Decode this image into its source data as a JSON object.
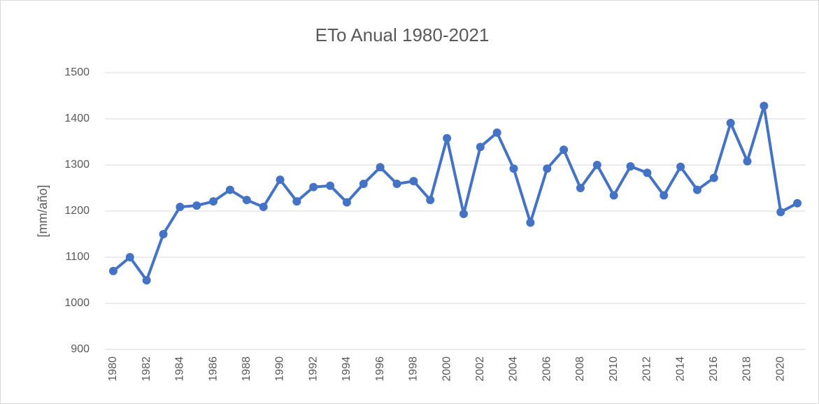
{
  "chart_data": {
    "type": "line",
    "title": "ETo Anual 1980-2021",
    "y_label": "[mm/año]",
    "categories": [
      "1980",
      null,
      "1982",
      null,
      "1984",
      null,
      "1986",
      null,
      "1988",
      null,
      "1990",
      null,
      "1992",
      null,
      "1994",
      null,
      "1996",
      null,
      "1998",
      null,
      "2000",
      null,
      "2002",
      null,
      "2004",
      null,
      "2006",
      null,
      "2008",
      null,
      "2010",
      null,
      "2012",
      null,
      "2014",
      null,
      "2016",
      null,
      "2018",
      null,
      "2020",
      null
    ],
    "series": [
      {
        "name": "ETo",
        "color": "#4472c4",
        "values": [
          1070,
          1100,
          1050,
          1150,
          1209,
          1212,
          1221,
          1246,
          1224,
          1209,
          1268,
          1221,
          1252,
          1255,
          1219,
          1259,
          1295,
          1259,
          1265,
          1224,
          1358,
          1194,
          1339,
          1370,
          1292,
          1175,
          1292,
          1333,
          1250,
          1300,
          1234,
          1297,
          1283,
          1234,
          1296,
          1246,
          1272,
          1391,
          1308,
          1428,
          1198,
          1217
        ]
      }
    ],
    "ylim": [
      900,
      1500
    ],
    "yticks": [
      900,
      1000,
      1100,
      1200,
      1300,
      1400,
      1500
    ],
    "grid": true
  }
}
